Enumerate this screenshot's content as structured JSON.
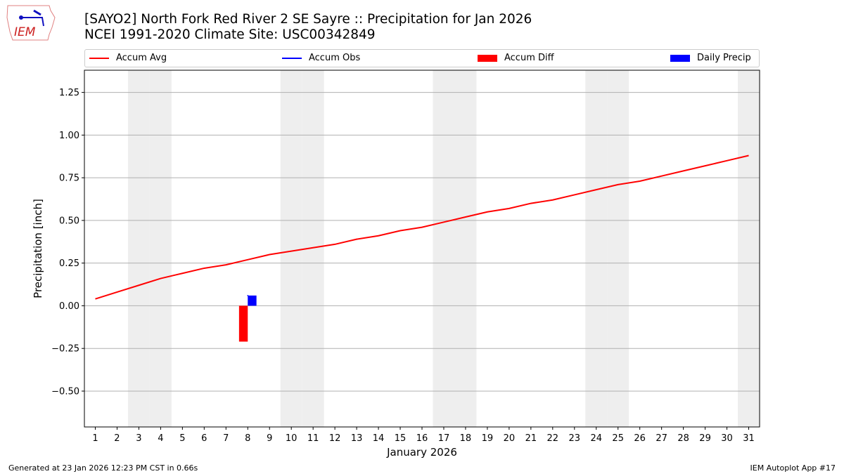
{
  "header": {
    "title_line1": "[SAYO2] North Fork Red River 2 SE Sayre :: Precipitation for Jan 2026",
    "title_line2": "NCEI 1991-2020 Climate Site: USC00342849",
    "logo_text": "IEM"
  },
  "footer": {
    "left": "Generated at 23 Jan 2026 12:23 PM CST in 0.66s",
    "right": "IEM Autoplot App #17"
  },
  "chart_data": {
    "type": "line",
    "xlabel": "January 2026",
    "ylabel": "Precipitation [inch]",
    "xlim": [
      0.5,
      31.5
    ],
    "ylim": [
      -0.71,
      1.38
    ],
    "yticks": [
      -0.5,
      -0.25,
      0.0,
      0.25,
      0.5,
      0.75,
      1.0,
      1.25
    ],
    "ytick_labels": [
      "−0.50",
      "−0.25",
      "0.00",
      "0.25",
      "0.50",
      "0.75",
      "1.00",
      "1.25"
    ],
    "x": [
      1,
      2,
      3,
      4,
      5,
      6,
      7,
      8,
      9,
      10,
      11,
      12,
      13,
      14,
      15,
      16,
      17,
      18,
      19,
      20,
      21,
      22,
      23,
      24,
      25,
      26,
      27,
      28,
      29,
      30,
      31
    ],
    "grid": "horizontal",
    "legend_placement": "top",
    "weekend_shading_days": [
      3,
      4,
      10,
      11,
      17,
      18,
      24,
      25,
      31
    ],
    "series": [
      {
        "name": "Accum Avg",
        "type": "line",
        "color": "#ff0000",
        "values": [
          0.04,
          0.08,
          0.12,
          0.16,
          0.19,
          0.22,
          0.24,
          0.27,
          0.3,
          0.32,
          0.34,
          0.36,
          0.39,
          0.41,
          0.44,
          0.46,
          0.49,
          0.52,
          0.55,
          0.57,
          0.6,
          0.62,
          0.65,
          0.68,
          0.71,
          0.73,
          0.76,
          0.79,
          0.82,
          0.85,
          0.88
        ]
      },
      {
        "name": "Accum Obs",
        "type": "line",
        "color": "#0000ff",
        "points": [
          [
            8,
            0.06
          ]
        ]
      },
      {
        "name": "Accum Diff",
        "type": "bar",
        "color": "#ff0000",
        "points": [
          [
            8,
            -0.21
          ]
        ]
      },
      {
        "name": "Daily Precip",
        "type": "bar",
        "color": "#0000ff",
        "points": [
          [
            8,
            0.06
          ]
        ]
      }
    ]
  }
}
